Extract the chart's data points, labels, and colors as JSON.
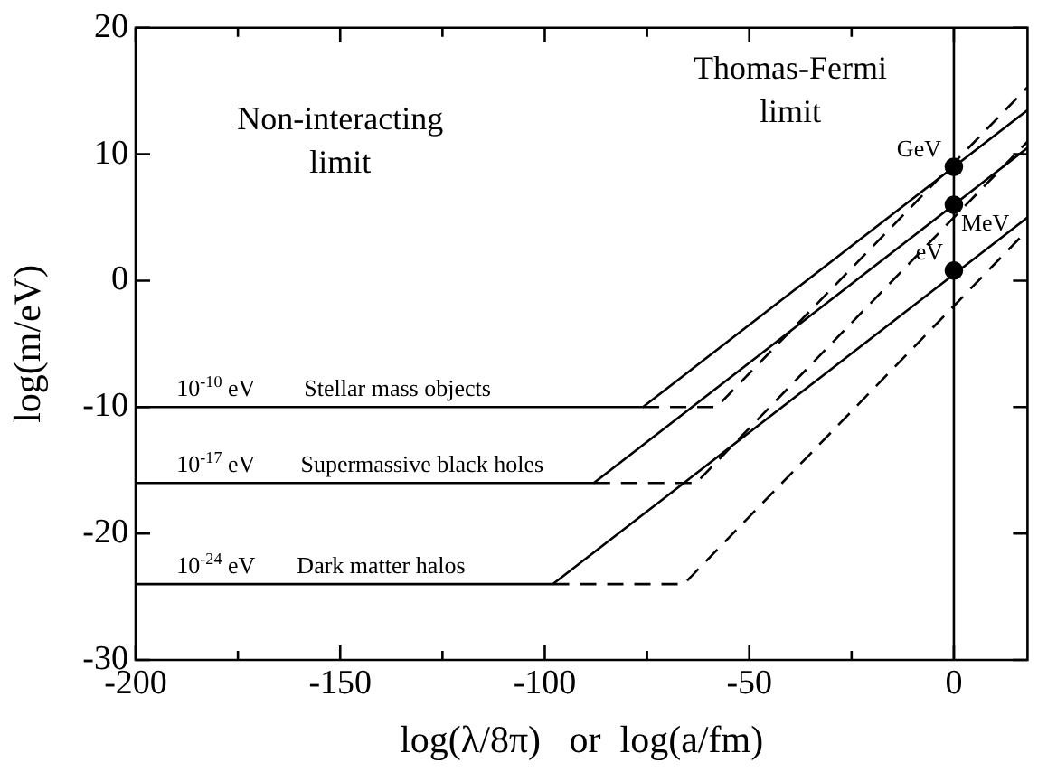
{
  "chart_data": {
    "type": "line",
    "xlabel": "log(λ/8π)   or  log(a/fm)",
    "ylabel": "log(m/eV)",
    "xlim": [
      -200,
      18
    ],
    "ylim": [
      -30,
      20
    ],
    "xticks": [
      -200,
      {
        "value": -175,
        "label": null
      },
      -150,
      {
        "value": -125,
        "label": null
      },
      -100,
      {
        "value": -75,
        "label": null
      },
      -50,
      {
        "value": -25,
        "label": null
      },
      0
    ],
    "yticks": [
      -30,
      -20,
      -10,
      0,
      10,
      20
    ],
    "grid": false,
    "legend": false,
    "series": [
      {
        "color": "#000000",
        "line_style": "solid",
        "marker": "none",
        "x": [
          -200,
          -76,
          18
        ],
        "values": [
          -10,
          -10,
          13.5
        ]
      },
      {
        "color": "#000000",
        "line_style": "solid",
        "marker": "none",
        "x": [
          -200,
          -88,
          18
        ],
        "values": [
          -16,
          -16,
          10.5
        ]
      },
      {
        "color": "#000000",
        "line_style": "solid",
        "marker": "none",
        "x": [
          -200,
          -98,
          18
        ],
        "values": [
          -24,
          -24,
          5
        ]
      },
      {
        "color": "#000000",
        "line_style": "dashed",
        "marker": "none",
        "x": [
          -76,
          -58,
          18
        ],
        "values": [
          -10,
          -10,
          15.3
        ]
      },
      {
        "color": "#000000",
        "line_style": "dashed",
        "marker": "none",
        "x": [
          -88,
          -63,
          18
        ],
        "values": [
          -16,
          -16,
          11
        ]
      },
      {
        "color": "#000000",
        "line_style": "dashed",
        "marker": "none",
        "x": [
          -98,
          -66,
          18
        ],
        "values": [
          -24,
          -24,
          4
        ]
      },
      {
        "type": "scatter",
        "color": "#000000",
        "marker": "circle",
        "x": [
          0,
          0,
          0
        ],
        "values": [
          9,
          6,
          0.8
        ]
      }
    ],
    "ref_lines": [
      {
        "axis": "x",
        "value": 0,
        "color": "#000000",
        "line_style": "solid"
      }
    ],
    "annotations": [
      "Non-interacting limit",
      "Thomas-Fermi limit",
      {
        "text": "GeV",
        "x": 0,
        "y": 9
      },
      {
        "text": "MeV",
        "x": 0,
        "y": 6
      },
      {
        "text": "eV",
        "x": 0,
        "y": 0.8
      },
      {
        "text": "10$^{-10}$ eV",
        "x": -190,
        "y": -10
      },
      {
        "text": "10$^{-17}$ eV",
        "x": -190,
        "y": -16
      },
      {
        "text": "10$^{-24}$ eV",
        "x": -190,
        "y": -24
      },
      {
        "text": "Stellar mass objects",
        "x": -136,
        "y": -10
      },
      {
        "text": "Supermassive black holes",
        "x": -130,
        "y": -16
      },
      {
        "text": "Dark matter halos",
        "x": -140,
        "y": -24
      }
    ]
  }
}
